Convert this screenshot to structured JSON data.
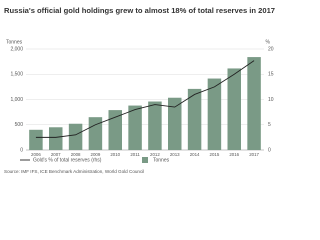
{
  "chart_data": {
    "type": "bar",
    "title": "Russia's official gold holdings grew to almost 18% of total reserves in 2017",
    "y_label": "Tonnes",
    "y2_label": "%",
    "categories": [
      "2006",
      "2007",
      "2008",
      "2009",
      "2010",
      "2011",
      "2012",
      "2013",
      "2014",
      "2015",
      "2016",
      "2017"
    ],
    "series": [
      {
        "name": "Tonnes",
        "type": "bar",
        "color": "#7a9a86",
        "values": [
          400,
          450,
          520,
          650,
          790,
          880,
          960,
          1035,
          1210,
          1415,
          1615,
          1840
        ]
      },
      {
        "name": "Gold's % of total reserves (rhs)",
        "type": "line",
        "axis": "y2",
        "color": "#222222",
        "values": [
          2.5,
          2.5,
          3.0,
          5.0,
          6.5,
          8.0,
          9.0,
          8.5,
          11.0,
          12.5,
          15.0,
          17.7
        ]
      }
    ],
    "ylim": [
      0,
      2000
    ],
    "yticks": [
      0,
      500,
      {
        "value": 1000,
        "label": "1,000"
      },
      {
        "value": 1500,
        "label": "1,500"
      },
      {
        "value": 2000,
        "label": "2,000"
      }
    ],
    "y2lim": [
      0,
      20
    ],
    "y2ticks": [
      0,
      5,
      10,
      15,
      20
    ],
    "grid": true,
    "source": "Source: IMF IFS, ICE Benchmark Administration, World Gold Council"
  }
}
